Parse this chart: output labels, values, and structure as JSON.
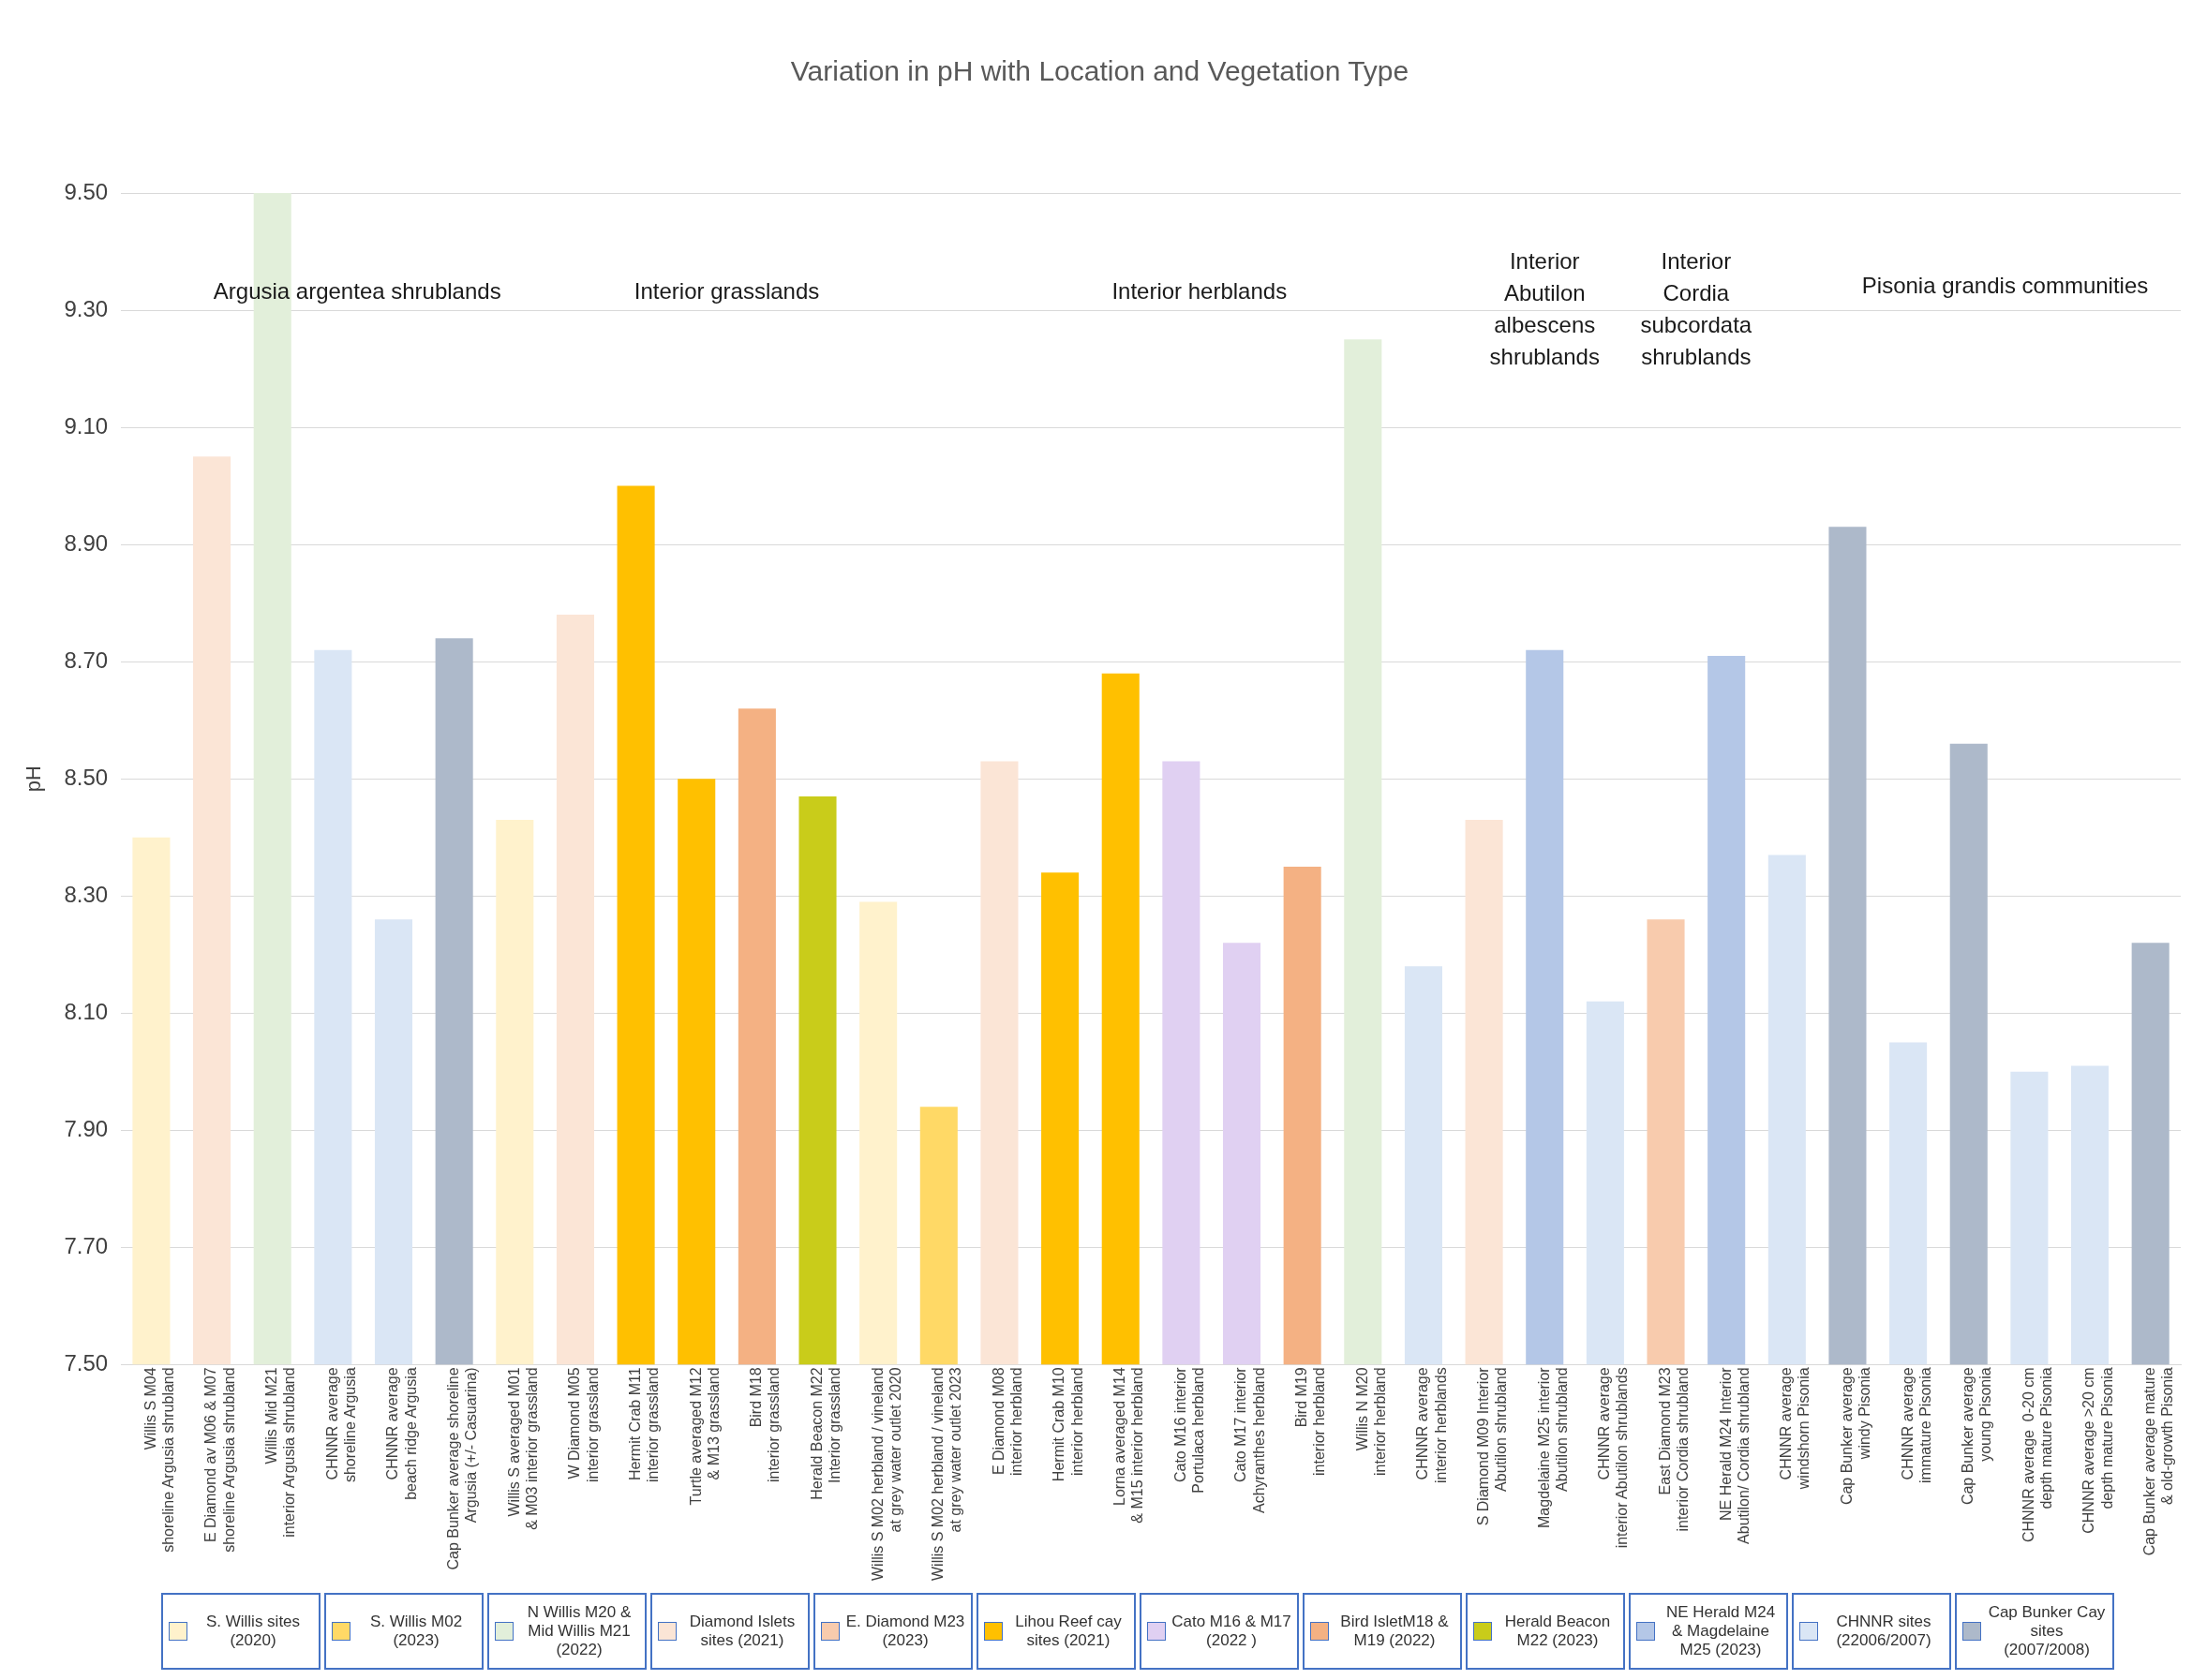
{
  "chart_data": {
    "type": "bar",
    "title": "Variation in pH with Location and Vegetation Type",
    "ylabel": "pH",
    "categories": [
      "Willis S M04\nshoreline Argusia shrubland",
      "E Diamond av M06 & M07\nshoreline Argusia shrubland",
      "Willis Mid M21\ninterior Argusia shrubland",
      "CHNNR average\nshoreline Argusia",
      "CHNNR average\nbeach ridge Argusia",
      "Cap Bunker average shoreline\nArgusia (+/- Casuarina)",
      "Willis S averaged M01\n& M03 interior grassland",
      "W Diamond M05\ninterior grassland",
      "Hermit Crab M11\ninterior grassland",
      "Turtle averaged M12\n& M13 grassland",
      "Bird M18\ninterior grassland",
      "Herald Beacon M22\nInterior grassland",
      "Willis S M02 herbland / vineland\nat grey water outlet 2020",
      "Willis S M02 herbland / vineland\nat grey water outlet 2023",
      "E Diamond M08\ninterior herbland",
      "Hermit Crab M10\ninterior herbland",
      "Lorna averaged M14\n& M15 interior herbland",
      "Cato M16 interior\nPortulaca herbland",
      "Cato M17 interior\nAchyranthes herbland",
      "Bird M19\ninterior herbland",
      "Willis N M20\ninterior herbland",
      "CHNNR average\ninterior herblands",
      "S Diamond M09 Interior\nAbutilon shrubland",
      "Magdelaine M25 interior\nAbutilon shrubland",
      "CHNNR average\ninterior Abutilon shrublands",
      "East Diamond M23\ninterior Cordia shrubland",
      "NE Herald M24 Interior\nAbutilon/ Cordia shrubland",
      "CHNNR average\nwindshorn Pisonia",
      "Cap Bunker average\nwindy Pisonia",
      "CHNNR average\nimmature Pisonia",
      "Cap Bunker average\nyoung Pisonia",
      "CHNNR average  0-20 cm\ndepth mature Pisonia",
      "CHNNR average >20 cm\ndepth mature Pisonia",
      "Cap Bunker average mature\n& old-growth Pisonia"
    ],
    "series": [
      {
        "name": "S. Willis sites (2020)",
        "color": "#fff2cc",
        "values": [
          8.4,
          null,
          null,
          null,
          null,
          null,
          8.43,
          null,
          null,
          null,
          null,
          null,
          8.29,
          null,
          null,
          null,
          null,
          null,
          null,
          null,
          null,
          null,
          null,
          null,
          null,
          null,
          null,
          null,
          null,
          null,
          null,
          null,
          null,
          null
        ]
      },
      {
        "name": "S. Willis M02 (2023)",
        "color": "#ffd966",
        "values": [
          null,
          null,
          null,
          null,
          null,
          null,
          null,
          null,
          null,
          null,
          null,
          null,
          null,
          7.94,
          null,
          null,
          null,
          null,
          null,
          null,
          null,
          null,
          null,
          null,
          null,
          null,
          null,
          null,
          null,
          null,
          null,
          null,
          null,
          null
        ]
      },
      {
        "name": "N Willis M20 & Mid Willis M21 (2022)",
        "color": "#e2efda",
        "values": [
          null,
          null,
          9.5,
          null,
          null,
          null,
          null,
          null,
          null,
          null,
          null,
          null,
          null,
          null,
          null,
          null,
          null,
          null,
          null,
          null,
          9.25,
          null,
          null,
          null,
          null,
          null,
          null,
          null,
          null,
          null,
          null,
          null,
          null,
          null
        ]
      },
      {
        "name": "Diamond Islets sites (2021)",
        "color": "#fbe5d6",
        "values": [
          null,
          9.05,
          null,
          null,
          null,
          null,
          null,
          8.78,
          null,
          null,
          null,
          null,
          null,
          null,
          8.53,
          null,
          null,
          null,
          null,
          null,
          null,
          null,
          8.43,
          null,
          null,
          null,
          null,
          null,
          null,
          null,
          null,
          null,
          null,
          null
        ]
      },
      {
        "name": "E. Diamond  M23 (2023)",
        "color": "#f8cbad",
        "values": [
          null,
          null,
          null,
          null,
          null,
          null,
          null,
          null,
          null,
          null,
          null,
          null,
          null,
          null,
          null,
          null,
          null,
          null,
          null,
          null,
          null,
          null,
          null,
          null,
          null,
          8.26,
          null,
          null,
          null,
          null,
          null,
          null,
          null,
          null
        ]
      },
      {
        "name": "Lihou Reef cay sites (2021)",
        "color": "#ffc000",
        "values": [
          null,
          null,
          null,
          null,
          null,
          null,
          null,
          null,
          9.0,
          8.5,
          null,
          null,
          null,
          null,
          null,
          8.34,
          8.68,
          null,
          null,
          null,
          null,
          null,
          null,
          null,
          null,
          null,
          null,
          null,
          null,
          null,
          null,
          null,
          null,
          null
        ]
      },
      {
        "name": "Cato M16 & M17 (2022 )",
        "color": "#e0d0f2",
        "values": [
          null,
          null,
          null,
          null,
          null,
          null,
          null,
          null,
          null,
          null,
          null,
          null,
          null,
          null,
          null,
          null,
          null,
          8.53,
          8.22,
          null,
          null,
          null,
          null,
          null,
          null,
          null,
          null,
          null,
          null,
          null,
          null,
          null,
          null,
          null
        ]
      },
      {
        "name": "Bird IsletM18 & M19 (2022)",
        "color": "#f4b183",
        "values": [
          null,
          null,
          null,
          null,
          null,
          null,
          null,
          null,
          null,
          null,
          8.62,
          null,
          null,
          null,
          null,
          null,
          null,
          null,
          null,
          8.35,
          null,
          null,
          null,
          null,
          null,
          null,
          null,
          null,
          null,
          null,
          null,
          null,
          null,
          null
        ]
      },
      {
        "name": "Herald Beacon M22 (2023)",
        "color": "#c9cc1a",
        "values": [
          null,
          null,
          null,
          null,
          null,
          null,
          null,
          null,
          null,
          null,
          null,
          8.47,
          null,
          null,
          null,
          null,
          null,
          null,
          null,
          null,
          null,
          null,
          null,
          null,
          null,
          null,
          null,
          null,
          null,
          null,
          null,
          null,
          null,
          null
        ]
      },
      {
        "name": "NE Herald M24 & Magdelaine M25 (2023)",
        "color": "#b4c7e7",
        "values": [
          null,
          null,
          null,
          null,
          null,
          null,
          null,
          null,
          null,
          null,
          null,
          null,
          null,
          null,
          null,
          null,
          null,
          null,
          null,
          null,
          null,
          null,
          null,
          8.72,
          null,
          null,
          8.71,
          null,
          null,
          null,
          null,
          null,
          null,
          null
        ]
      },
      {
        "name": "CHNNR sites (22006/2007)",
        "color": "#dae6f5",
        "values": [
          null,
          null,
          null,
          8.72,
          8.26,
          null,
          null,
          null,
          null,
          null,
          null,
          null,
          null,
          null,
          null,
          null,
          null,
          null,
          null,
          null,
          null,
          8.18,
          null,
          null,
          8.12,
          null,
          null,
          8.37,
          null,
          8.05,
          null,
          8.0,
          8.01,
          null
        ]
      },
      {
        "name": "Cap Bunker Cay sites (2007/2008)",
        "color": "#adb9ca",
        "values": [
          null,
          null,
          null,
          null,
          null,
          8.74,
          null,
          null,
          null,
          null,
          null,
          null,
          null,
          null,
          null,
          null,
          null,
          null,
          null,
          null,
          null,
          null,
          null,
          null,
          null,
          null,
          null,
          null,
          8.93,
          null,
          8.56,
          null,
          null,
          8.22
        ]
      }
    ],
    "ylim": [
      7.5,
      9.5
    ],
    "yticks": [
      {
        "value": 7.5,
        "label": "7.50"
      },
      {
        "value": 7.7,
        "label": "7.70"
      },
      {
        "value": 7.9,
        "label": "7.90"
      },
      {
        "value": 8.1,
        "label": "8.10"
      },
      {
        "value": 8.3,
        "label": "8.30"
      },
      {
        "value": 8.5,
        "label": "8.50"
      },
      {
        "value": 8.7,
        "label": "8.70"
      },
      {
        "value": 8.9,
        "label": "8.90"
      },
      {
        "value": 9.1,
        "label": "9.10"
      },
      {
        "value": 9.3,
        "label": "9.30"
      },
      {
        "value": 9.5,
        "label": "9.50"
      }
    ],
    "grid": "y",
    "legend": "bottom",
    "annotations": [
      "Argusia argentea shrublands",
      "Interior grasslands",
      "Interior herblands",
      "Interior\nAbutilon\nalbescens\nshrublands",
      "Interior\nCordia\nsubcordata\nshrublands",
      "Pisonia grandis communities"
    ]
  }
}
